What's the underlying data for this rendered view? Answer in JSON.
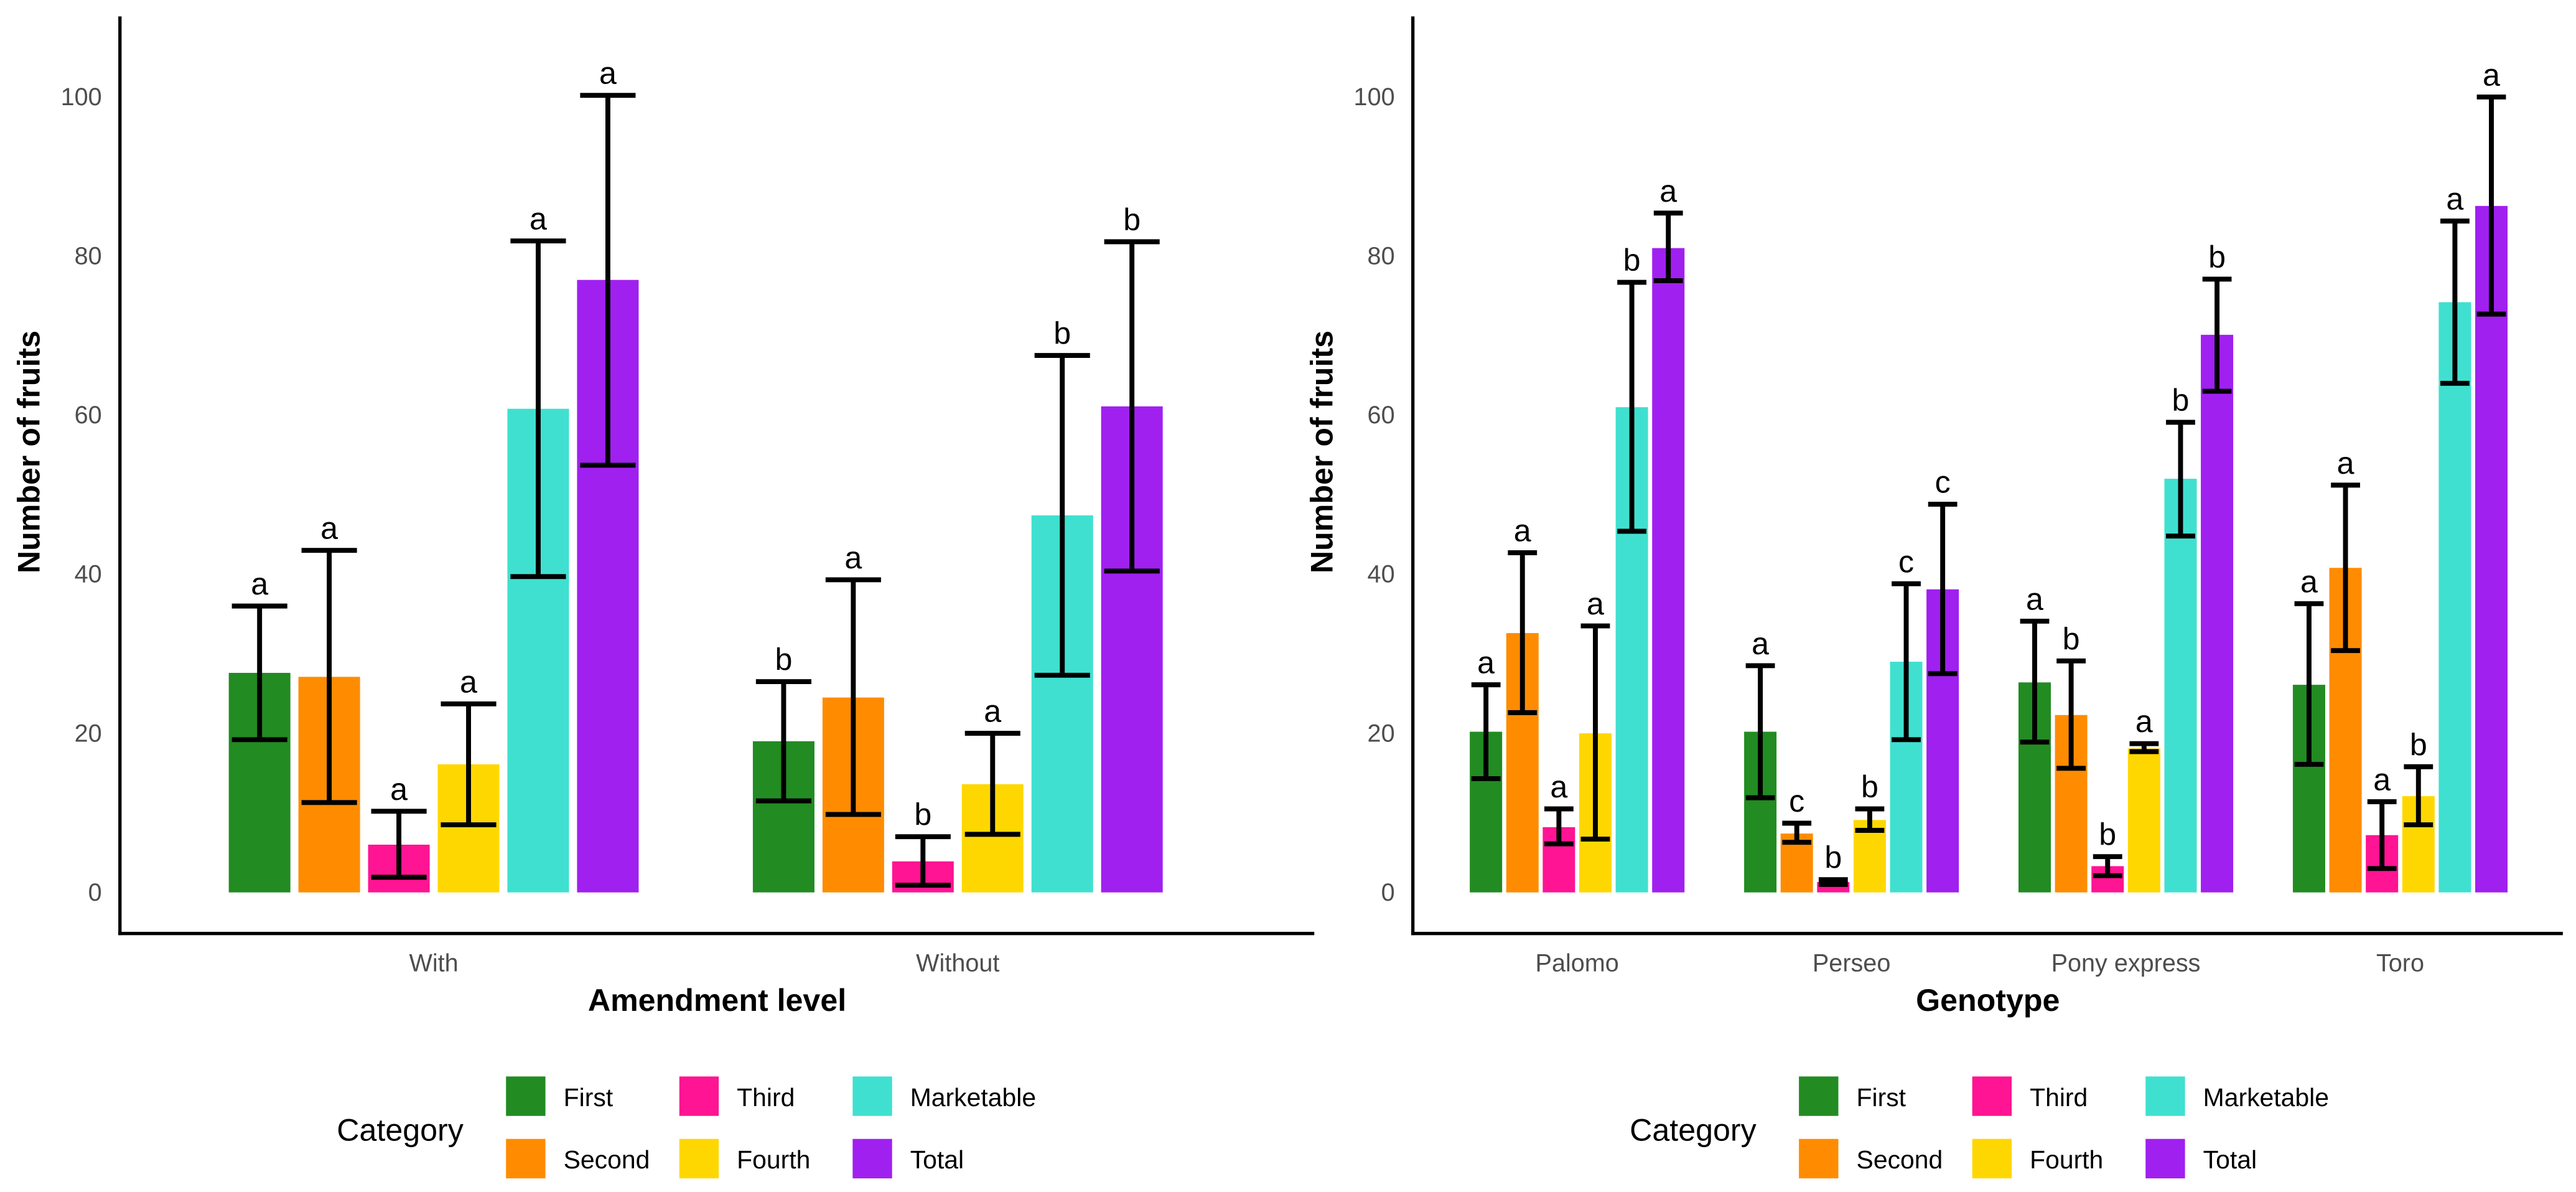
{
  "chart_data": [
    {
      "type": "bar",
      "title": "",
      "xlabel": "Amendment level",
      "ylabel": "Number of fruits",
      "ylim": [
        0,
        110
      ],
      "yticks": [
        0,
        20,
        40,
        60,
        80,
        100
      ],
      "categories": [
        "With",
        "Without"
      ],
      "legend": {
        "title": "Category",
        "placement": "bottom"
      },
      "series": [
        {
          "name": "First",
          "color": "#228B22",
          "values": [
            27.6,
            19.0
          ],
          "err_low": [
            19.2,
            11.5
          ],
          "err_high": [
            36.0,
            26.5
          ],
          "letters": [
            "a",
            "b"
          ]
        },
        {
          "name": "Second",
          "color": "#FF8C00",
          "values": [
            27.1,
            24.5
          ],
          "err_low": [
            11.3,
            9.8
          ],
          "err_high": [
            43.0,
            39.3
          ],
          "letters": [
            "a",
            "a"
          ]
        },
        {
          "name": "Third",
          "color": "#FF1493",
          "values": [
            6.0,
            3.9
          ],
          "err_low": [
            1.9,
            0.9
          ],
          "err_high": [
            10.2,
            7.0
          ],
          "letters": [
            "a",
            "b"
          ]
        },
        {
          "name": "Fourth",
          "color": "#FFD700",
          "values": [
            16.1,
            13.6
          ],
          "err_low": [
            8.5,
            7.3
          ],
          "err_high": [
            23.7,
            20.0
          ],
          "letters": [
            "a",
            "a"
          ]
        },
        {
          "name": "Marketable",
          "color": "#40E0D0",
          "values": [
            60.8,
            47.4
          ],
          "err_low": [
            39.7,
            27.3
          ],
          "err_high": [
            81.9,
            67.5
          ],
          "letters": [
            "a",
            "b"
          ]
        },
        {
          "name": "Total",
          "color": "#A020F0",
          "values": [
            77.0,
            61.1
          ],
          "err_low": [
            53.7,
            40.4
          ],
          "err_high": [
            100.2,
            81.8
          ],
          "letters": [
            "a",
            "b"
          ]
        }
      ]
    },
    {
      "type": "bar",
      "title": "",
      "xlabel": "Genotype",
      "ylabel": "Number of fruits",
      "ylim": [
        0,
        110
      ],
      "yticks": [
        0,
        20,
        40,
        60,
        80,
        100
      ],
      "categories": [
        "Palomo",
        "Perseo",
        "Pony express",
        "Toro"
      ],
      "legend": {
        "title": "Category",
        "placement": "bottom"
      },
      "series": [
        {
          "name": "First",
          "color": "#228B22",
          "values": [
            20.2,
            20.2,
            26.4,
            26.1
          ],
          "err_low": [
            14.3,
            11.9,
            18.9,
            16.1
          ],
          "err_high": [
            26.1,
            28.5,
            34.1,
            36.3
          ],
          "letters": [
            "a",
            "a",
            "a",
            "a"
          ]
        },
        {
          "name": "Second",
          "color": "#FF8C00",
          "values": [
            32.6,
            7.4,
            22.3,
            40.8
          ],
          "err_low": [
            22.6,
            6.3,
            15.6,
            30.4
          ],
          "err_high": [
            42.7,
            8.7,
            29.1,
            51.2
          ],
          "letters": [
            "a",
            "c",
            "b",
            "a"
          ]
        },
        {
          "name": "Third",
          "color": "#FF1493",
          "values": [
            8.2,
            1.3,
            3.3,
            7.2
          ],
          "err_low": [
            6.1,
            1.0,
            2.1,
            3.0
          ],
          "err_high": [
            10.5,
            1.6,
            4.5,
            11.4
          ],
          "letters": [
            "a",
            "b",
            "b",
            "a"
          ]
        },
        {
          "name": "Fourth",
          "color": "#FFD700",
          "values": [
            20.0,
            9.1,
            18.1,
            12.1
          ],
          "err_low": [
            6.7,
            7.8,
            17.7,
            8.5
          ],
          "err_high": [
            33.5,
            10.5,
            18.7,
            15.8
          ],
          "letters": [
            "a",
            "b",
            "a",
            "b"
          ]
        },
        {
          "name": "Marketable",
          "color": "#40E0D0",
          "values": [
            61.0,
            29.0,
            52.0,
            74.2
          ],
          "err_low": [
            45.4,
            19.2,
            44.8,
            64.0
          ],
          "err_high": [
            76.7,
            38.8,
            59.1,
            84.4
          ],
          "letters": [
            "b",
            "c",
            "b",
            "a"
          ]
        },
        {
          "name": "Total",
          "color": "#A020F0",
          "values": [
            81.0,
            38.1,
            70.1,
            86.3
          ],
          "err_low": [
            76.9,
            27.5,
            63.0,
            72.7
          ],
          "err_high": [
            85.4,
            48.8,
            77.1,
            100.0
          ],
          "letters": [
            "a",
            "c",
            "b",
            "a"
          ]
        }
      ]
    }
  ]
}
